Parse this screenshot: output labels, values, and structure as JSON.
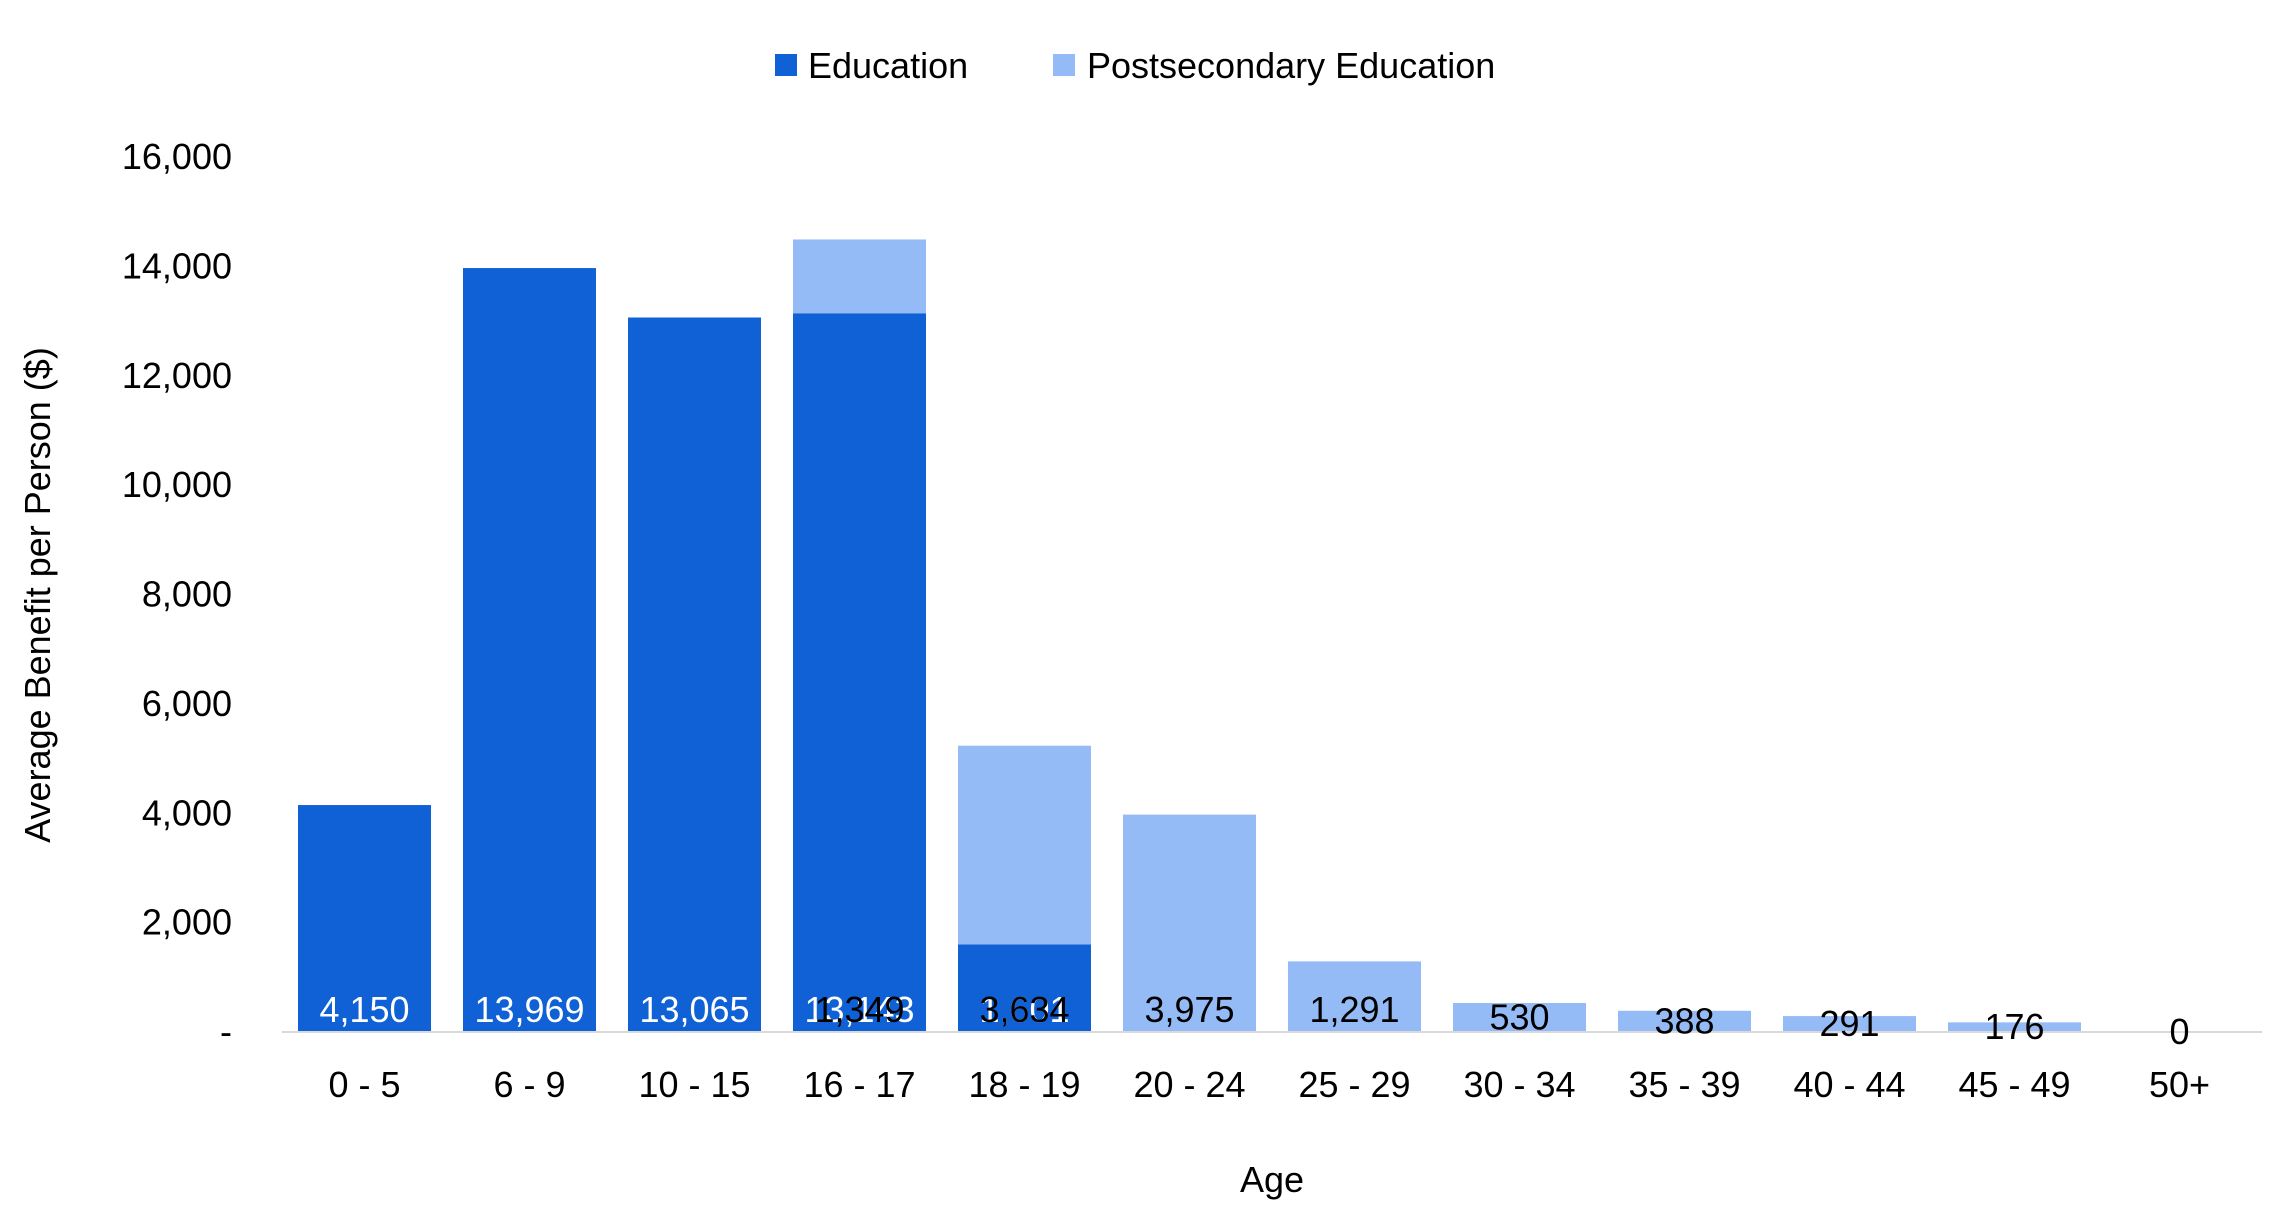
{
  "chart_data": {
    "type": "bar",
    "stacked": true,
    "title": "",
    "xlabel": "Age",
    "ylabel": "Average Benefit per Person ($)",
    "ylim": [
      0,
      16000
    ],
    "yticks": [
      0,
      2000,
      4000,
      6000,
      8000,
      10000,
      12000,
      14000,
      16000
    ],
    "ytick_labels": [
      "-",
      "2,000",
      "4,000",
      "6,000",
      "8,000",
      "10,000",
      "12,000",
      "14,000",
      "16,000"
    ],
    "categories": [
      "0 - 5",
      "6 - 9",
      "10  - 15",
      "16 - 17",
      "18 - 19",
      "20 - 24",
      "25 - 29",
      "30 - 34",
      "35 - 39",
      "40 - 44",
      "45 - 49",
      "50+"
    ],
    "series": [
      {
        "name": "Education",
        "color": "#1060d6",
        "label_color": "#ffffff",
        "values": [
          4150,
          13969,
          13065,
          13143,
          1601,
          null,
          null,
          null,
          null,
          null,
          null,
          null
        ],
        "labels": [
          "4,150",
          "13,969",
          "13,065",
          "13,143",
          "1,601",
          "",
          "",
          "",
          "",
          "",
          "",
          ""
        ]
      },
      {
        "name": "Postsecondary Education",
        "color": "#94bbf5",
        "label_color": "#000000",
        "values": [
          null,
          null,
          null,
          1349,
          3634,
          3975,
          1291,
          530,
          388,
          291,
          176,
          0
        ],
        "labels": [
          "",
          "",
          "",
          "1,349",
          "3,634",
          "3,975",
          "1,291",
          "530",
          "388",
          "291",
          "176",
          "0"
        ]
      }
    ],
    "legend_position": "top-center",
    "grid": false
  }
}
